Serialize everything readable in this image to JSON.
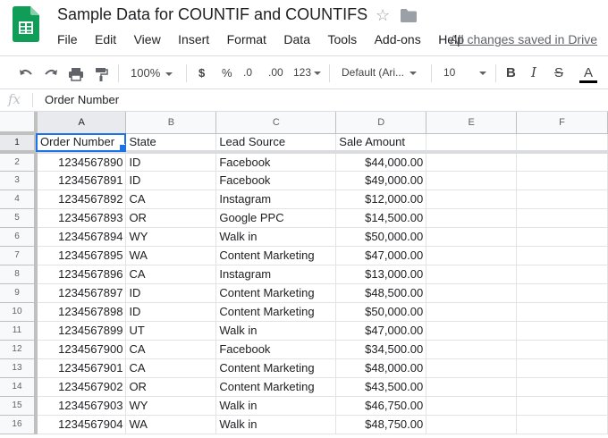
{
  "document": {
    "title": "Sample Data for COUNTIF and COUNTIFS",
    "save_status": "All changes saved in Drive"
  },
  "menu": [
    "File",
    "Edit",
    "View",
    "Insert",
    "Format",
    "Data",
    "Tools",
    "Add-ons",
    "Help"
  ],
  "toolbar": {
    "zoom": "100%",
    "currency": "$",
    "percent": "%",
    "decrease_decimals": ".0",
    "increase_decimals": ".00",
    "more_formats": "123",
    "font": "Default (Ari...",
    "font_size": "10",
    "bold": "B",
    "italic": "I",
    "strikethrough": "S",
    "text_color": "A",
    "text_color_value": "#000000"
  },
  "formula_bar": {
    "icon": "fx",
    "value": "Order Number"
  },
  "sheet": {
    "columns": [
      "A",
      "B",
      "C",
      "D",
      "E",
      "F"
    ],
    "row_numbers": [
      "1",
      "2",
      "3",
      "4",
      "5",
      "6",
      "7",
      "8",
      "9",
      "10",
      "11",
      "12",
      "13",
      "14",
      "15",
      "16"
    ],
    "header": [
      "Order Number",
      "State",
      "Lead Source",
      "Sale Amount"
    ],
    "rows": [
      [
        "1234567890",
        "ID",
        "Facebook",
        "$44,000.00"
      ],
      [
        "1234567891",
        "ID",
        "Facebook",
        "$49,000.00"
      ],
      [
        "1234567892",
        "CA",
        "Instagram",
        "$12,000.00"
      ],
      [
        "1234567893",
        "OR",
        "Google PPC",
        "$14,500.00"
      ],
      [
        "1234567894",
        "WY",
        "Walk in",
        "$50,000.00"
      ],
      [
        "1234567895",
        "WA",
        "Content Marketing",
        "$47,000.00"
      ],
      [
        "1234567896",
        "CA",
        "Instagram",
        "$13,000.00"
      ],
      [
        "1234567897",
        "ID",
        "Content Marketing",
        "$48,500.00"
      ],
      [
        "1234567898",
        "ID",
        "Content Marketing",
        "$50,000.00"
      ],
      [
        "1234567899",
        "UT",
        "Walk in",
        "$47,000.00"
      ],
      [
        "1234567900",
        "CA",
        "Facebook",
        "$34,500.00"
      ],
      [
        "1234567901",
        "CA",
        "Content Marketing",
        "$48,000.00"
      ],
      [
        "1234567902",
        "OR",
        "Content Marketing",
        "$43,500.00"
      ],
      [
        "1234567903",
        "WY",
        "Walk in",
        "$46,750.00"
      ],
      [
        "1234567904",
        "WA",
        "Walk in",
        "$48,750.00"
      ]
    ],
    "selected_cell": "A1",
    "selection_color": "#1a73e8"
  },
  "colors": {
    "brand": "#0f9d58",
    "header_bg": "#f8f9fa",
    "gridline": "#e2e3e3"
  }
}
